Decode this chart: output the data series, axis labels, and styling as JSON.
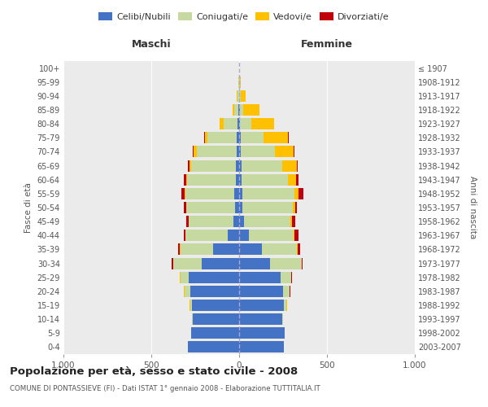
{
  "age_groups": [
    "0-4",
    "5-9",
    "10-14",
    "15-19",
    "20-24",
    "25-29",
    "30-34",
    "35-39",
    "40-44",
    "45-49",
    "50-54",
    "55-59",
    "60-64",
    "65-69",
    "70-74",
    "75-79",
    "80-84",
    "85-89",
    "90-94",
    "95-99",
    "100+"
  ],
  "birth_years": [
    "2003-2007",
    "1998-2002",
    "1993-1997",
    "1988-1992",
    "1983-1987",
    "1978-1982",
    "1973-1977",
    "1968-1972",
    "1963-1967",
    "1958-1962",
    "1953-1957",
    "1948-1952",
    "1943-1947",
    "1938-1942",
    "1933-1937",
    "1928-1932",
    "1923-1927",
    "1918-1922",
    "1913-1917",
    "1908-1912",
    "≤ 1907"
  ],
  "males": {
    "celibi": [
      290,
      275,
      265,
      270,
      280,
      285,
      215,
      150,
      65,
      32,
      25,
      30,
      20,
      18,
      15,
      12,
      8,
      4,
      2,
      1,
      0
    ],
    "coniugati": [
      0,
      0,
      5,
      10,
      30,
      50,
      160,
      185,
      240,
      255,
      275,
      275,
      275,
      255,
      225,
      170,
      80,
      25,
      8,
      3,
      1
    ],
    "vedovi": [
      0,
      0,
      0,
      2,
      3,
      2,
      2,
      2,
      2,
      2,
      3,
      5,
      8,
      10,
      20,
      12,
      25,
      8,
      3,
      1,
      0
    ],
    "divorziati": [
      0,
      0,
      0,
      0,
      2,
      2,
      5,
      8,
      10,
      12,
      10,
      20,
      10,
      8,
      5,
      5,
      0,
      0,
      0,
      0,
      0
    ]
  },
  "females": {
    "nubili": [
      255,
      260,
      245,
      255,
      250,
      235,
      175,
      130,
      55,
      28,
      20,
      20,
      15,
      12,
      10,
      8,
      5,
      4,
      2,
      1,
      0
    ],
    "coniugate": [
      0,
      0,
      5,
      15,
      35,
      60,
      180,
      200,
      255,
      265,
      285,
      295,
      265,
      235,
      195,
      130,
      65,
      18,
      8,
      3,
      1
    ],
    "vedove": [
      0,
      0,
      0,
      2,
      3,
      2,
      3,
      3,
      5,
      8,
      15,
      25,
      45,
      80,
      105,
      140,
      130,
      95,
      25,
      5,
      1
    ],
    "divorziate": [
      0,
      0,
      0,
      0,
      2,
      2,
      5,
      12,
      22,
      18,
      10,
      28,
      12,
      8,
      5,
      5,
      0,
      0,
      0,
      0,
      0
    ]
  },
  "colors": {
    "celibi_nubili": "#4472c4",
    "coniugati": "#c5d9a0",
    "vedovi": "#ffc000",
    "divorziati": "#c0000b"
  },
  "title": "Popolazione per età, sesso e stato civile - 2008",
  "subtitle": "COMUNE DI PONTASSIEVE (FI) - Dati ISTAT 1° gennaio 2008 - Elaborazione TUTTITALIA.IT",
  "xlabel_left": "Maschi",
  "xlabel_right": "Femmine",
  "ylabel_left": "Fasce di età",
  "ylabel_right": "Anni di nascita",
  "xlim": 1000,
  "xticklabels": [
    "1.000",
    "500",
    "0",
    "500",
    "1.000"
  ],
  "legend_labels": [
    "Celibi/Nubili",
    "Coniugati/e",
    "Vedovi/e",
    "Divorziati/e"
  ],
  "bg_color": "#ebebeb"
}
